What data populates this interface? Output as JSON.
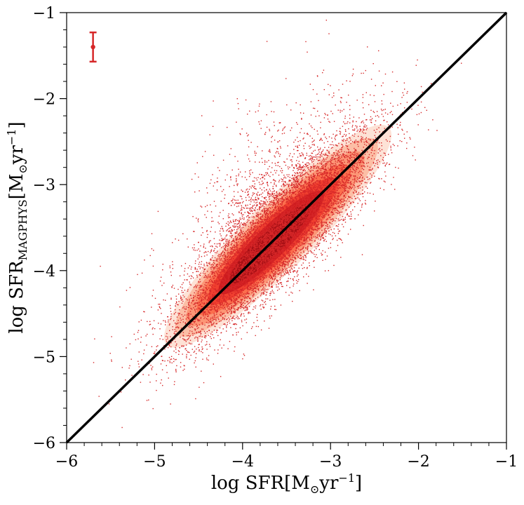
{
  "chart_data": {
    "type": "scatter",
    "title": "",
    "xlabel": {
      "main": "log SFR[M",
      "sub": "⊙",
      "mid": "yr",
      "sup": "−1",
      "end": "]"
    },
    "ylabel": {
      "main": "log SFR",
      "sub": "MAGPHYS",
      "mid": "[M",
      "sub2": "⊙",
      "mid2": "yr",
      "sup": "−1",
      "end": "]"
    },
    "xlim": [
      -6,
      -1
    ],
    "ylim": [
      -6,
      -1
    ],
    "xticks": [
      -6,
      -5,
      -4,
      -3,
      -2,
      -1
    ],
    "yticks": [
      -6,
      -5,
      -4,
      -3,
      -2,
      -1
    ],
    "xtick_labels": [
      "−6",
      "−5",
      "−4",
      "−3",
      "−2",
      "−1"
    ],
    "ytick_labels": [
      "−6",
      "−5",
      "−4",
      "−3",
      "−2",
      "−1"
    ],
    "grid": false,
    "legend": "none",
    "one_to_one_line": {
      "x": [
        -6,
        -1
      ],
      "y": [
        -6,
        -1
      ],
      "color": "#000000"
    },
    "scatter": {
      "color": "#d62728",
      "point_count_approx": 9000,
      "center_x": -3.6,
      "center_y": -3.6,
      "x_range": [
        -5.5,
        -1.7
      ],
      "spread_along_line": 0.55,
      "spread_perpendicular": 0.22,
      "lower_tail_y_min": -6
    },
    "density_contours": {
      "colors": [
        "#fde0d2",
        "#fcbba1",
        "#fc9272",
        "#fb6a4a",
        "#ef3b2c",
        "#cb181d",
        "#a50f15"
      ],
      "center_x": -3.6,
      "center_y": -3.6,
      "extent_along_line": [
        -4.75,
        -2.25
      ]
    },
    "error_bar": {
      "x": -5.7,
      "y": -1.4,
      "yerr": 0.17,
      "color": "#d62728"
    }
  }
}
